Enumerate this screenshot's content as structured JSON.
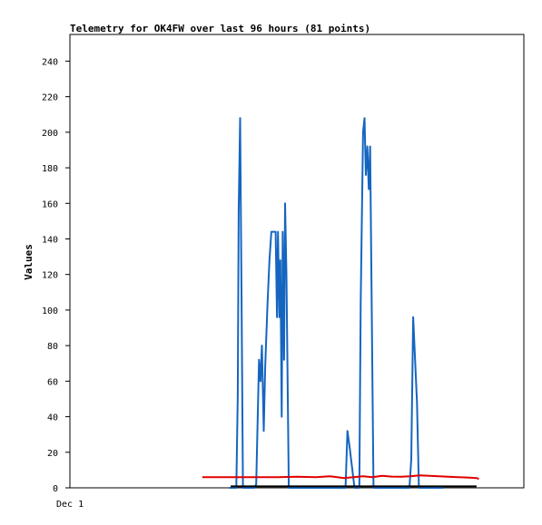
{
  "chart_data": {
    "type": "line",
    "title": "Telemetry for OK4FW over last 96 hours (81 points)",
    "xlabel": "",
    "ylabel": "Values",
    "x_tick_labels": [
      "Dec 1"
    ],
    "ylim": [
      0,
      255
    ],
    "y_ticks": [
      0,
      20,
      40,
      60,
      80,
      100,
      120,
      140,
      160,
      180,
      200,
      220,
      240
    ],
    "xlim": [
      0,
      96
    ],
    "grid": false,
    "legend": "none",
    "series": [
      {
        "color": "#1565c0",
        "points": [
          [
            33.7,
            0
          ],
          [
            35.2,
            0
          ],
          [
            35.5,
            52
          ],
          [
            35.7,
            156
          ],
          [
            36.0,
            208
          ],
          [
            36.3,
            104
          ],
          [
            36.6,
            0
          ],
          [
            39.0,
            0
          ],
          [
            39.4,
            2
          ],
          [
            40.0,
            72
          ],
          [
            40.3,
            60
          ],
          [
            40.6,
            80
          ],
          [
            41.0,
            32
          ],
          [
            41.3,
            68
          ],
          [
            41.8,
            104
          ],
          [
            42.2,
            128
          ],
          [
            42.6,
            144
          ],
          [
            43.2,
            144
          ],
          [
            43.5,
            144
          ],
          [
            43.8,
            96
          ],
          [
            44.0,
            144
          ],
          [
            44.3,
            96
          ],
          [
            44.5,
            128
          ],
          [
            44.8,
            40
          ],
          [
            45.0,
            144
          ],
          [
            45.3,
            72
          ],
          [
            45.5,
            160
          ],
          [
            45.8,
            120
          ],
          [
            46.3,
            0
          ],
          [
            58.3,
            0
          ],
          [
            58.7,
            32
          ],
          [
            59.2,
            22
          ],
          [
            60.2,
            0
          ],
          [
            61.2,
            0
          ],
          [
            61.5,
            104
          ],
          [
            62.0,
            200
          ],
          [
            62.3,
            208
          ],
          [
            62.6,
            176
          ],
          [
            62.9,
            192
          ],
          [
            63.2,
            168
          ],
          [
            63.5,
            192
          ],
          [
            64.2,
            0
          ],
          [
            71.8,
            0
          ],
          [
            72.2,
            16
          ],
          [
            72.6,
            96
          ],
          [
            73.0,
            72
          ],
          [
            73.4,
            48
          ],
          [
            73.8,
            0
          ],
          [
            79.0,
            0
          ]
        ]
      },
      {
        "color": "#e00000",
        "points": [
          [
            28,
            6
          ],
          [
            32,
            6
          ],
          [
            36,
            6
          ],
          [
            40,
            6
          ],
          [
            44,
            6
          ],
          [
            48,
            6.2
          ],
          [
            52,
            6
          ],
          [
            55,
            6.5
          ],
          [
            58,
            5.5
          ],
          [
            60,
            6
          ],
          [
            62,
            6.5
          ],
          [
            64,
            6
          ],
          [
            66,
            6.8
          ],
          [
            68,
            6.3
          ],
          [
            70,
            6.2
          ],
          [
            72,
            6.5
          ],
          [
            74,
            7
          ],
          [
            76,
            6.8
          ],
          [
            78,
            6.5
          ],
          [
            80,
            6.2
          ],
          [
            82,
            6
          ],
          [
            84,
            5.8
          ],
          [
            86,
            5.5
          ],
          [
            86.5,
            5
          ]
        ]
      },
      {
        "color": "#000000",
        "points": [
          [
            34,
            0.8
          ],
          [
            86,
            0.8
          ]
        ]
      }
    ]
  }
}
